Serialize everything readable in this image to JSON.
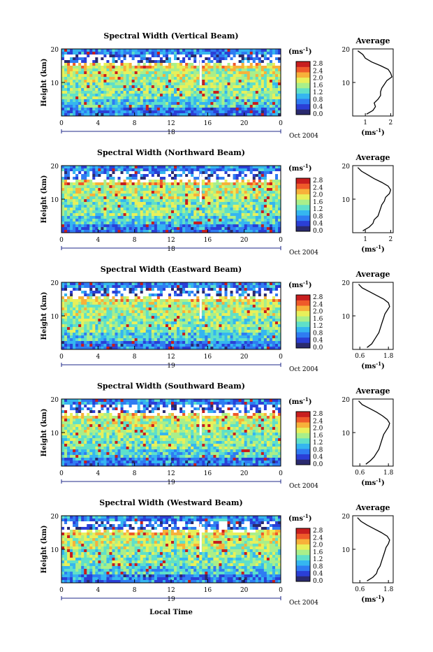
{
  "figure": {
    "x_axis_label": "Local Time",
    "units_label": "(ms",
    "units_exp": "-1",
    "units_close": ")",
    "colors": [
      "#2a2a6e",
      "#2b3fd6",
      "#2f7cf2",
      "#35b6f0",
      "#5fe0c9",
      "#a9ef8a",
      "#e8f05a",
      "#f7b13a",
      "#ef5a2a",
      "#c81e1e"
    ]
  },
  "chart_data": [
    {
      "type": "heatmap",
      "title": "Spectral Width (Vertical Beam)",
      "ylabel": "Height (km)",
      "yticks": [
        "20",
        "10"
      ],
      "xticks": [
        "0",
        "4",
        "8",
        "12",
        "16",
        "20",
        "0"
      ],
      "date_day": "18",
      "date_month": "Oct 2004",
      "colorbar_ticks": [
        "2.8",
        "2.4",
        "2.0",
        "1.6",
        "1.2",
        "0.8",
        "0.4",
        "0.0"
      ],
      "profile": {
        "title": "Average",
        "xlabel": "(ms",
        "xlabel_exp": "-1",
        "xlabel_close": ")",
        "xticks": [
          "1",
          "2"
        ],
        "xlim": [
          0.5,
          2.1
        ],
        "ylim": [
          2,
          20
        ],
        "yticks": [
          "20",
          "10"
        ],
        "height_km": [
          2.5,
          3.5,
          4.5,
          5.5,
          6.5,
          7.5,
          8.5,
          9.5,
          10.5,
          11.5,
          12.5,
          13.5,
          14.5,
          15.5,
          16.5,
          17.5,
          18.5,
          19.5
        ],
        "width_ms": [
          1.05,
          1.3,
          1.4,
          1.35,
          1.5,
          1.6,
          1.6,
          1.65,
          1.75,
          1.85,
          2.05,
          2.0,
          1.9,
          1.6,
          1.25,
          1.0,
          0.9,
          0.7
        ]
      }
    },
    {
      "type": "heatmap",
      "title": "Spectral Width (Northward Beam)",
      "ylabel": "Height (km)",
      "yticks": [
        "20",
        "10"
      ],
      "xticks": [
        "0",
        "4",
        "8",
        "12",
        "16",
        "20",
        "0"
      ],
      "date_day": "18",
      "date_month": "Oct 2004",
      "colorbar_ticks": [
        "2.8",
        "2.4",
        "2.0",
        "1.6",
        "1.2",
        "0.8",
        "0.4",
        "0.0"
      ],
      "profile": {
        "title": "Average",
        "xlabel": "(ms",
        "xlabel_exp": "-1",
        "xlabel_close": ")",
        "xticks": [
          "1",
          "2"
        ],
        "xlim": [
          0.5,
          2.1
        ],
        "ylim": [
          2,
          20
        ],
        "yticks": [
          "20",
          "10"
        ],
        "height_km": [
          2.5,
          3.5,
          4.5,
          5.5,
          6.5,
          7.5,
          8.5,
          9.5,
          10.5,
          11.5,
          12.5,
          13.5,
          14.5,
          15.5,
          16.5,
          17.5,
          18.5,
          19.5
        ],
        "width_ms": [
          0.9,
          1.15,
          1.3,
          1.35,
          1.5,
          1.55,
          1.6,
          1.65,
          1.75,
          1.8,
          1.95,
          2.0,
          1.9,
          1.65,
          1.35,
          1.1,
          0.85,
          0.7
        ]
      }
    },
    {
      "type": "heatmap",
      "title": "Spectral Width (Eastward Beam)",
      "ylabel": "Height (km)",
      "yticks": [
        "20",
        "10"
      ],
      "xticks": [
        "0",
        "4",
        "8",
        "12",
        "16",
        "20",
        "0"
      ],
      "date_day": "19",
      "date_month": "Oct 2004",
      "colorbar_ticks": [
        "2.8",
        "2.4",
        "2.0",
        "1.6",
        "1.2",
        "0.8",
        "0.4",
        "0.0"
      ],
      "profile": {
        "title": "Average",
        "xlabel": "(ms",
        "xlabel_exp": "-1",
        "xlabel_close": ")",
        "xticks": [
          "0.6",
          "1.8"
        ],
        "xlim": [
          0.3,
          2.0
        ],
        "ylim": [
          2,
          20
        ],
        "yticks": [
          "20",
          "10"
        ],
        "height_km": [
          2.5,
          3.5,
          4.5,
          5.5,
          6.5,
          7.5,
          8.5,
          9.5,
          10.5,
          11.5,
          12.5,
          13.5,
          14.5,
          15.5,
          16.5,
          17.5,
          18.5,
          19.5
        ],
        "width_ms": [
          0.9,
          1.1,
          1.2,
          1.3,
          1.4,
          1.45,
          1.5,
          1.55,
          1.6,
          1.65,
          1.75,
          1.85,
          1.8,
          1.6,
          1.3,
          1.0,
          0.7,
          0.55
        ]
      }
    },
    {
      "type": "heatmap",
      "title": "Spectral Width (Southward Beam)",
      "ylabel": "Height (km)",
      "yticks": [
        "20",
        "10"
      ],
      "xticks": [
        "0",
        "4",
        "8",
        "12",
        "16",
        "20",
        "0"
      ],
      "date_day": "19",
      "date_month": "Oct 2004",
      "colorbar_ticks": [
        "2.8",
        "2.4",
        "2.0",
        "1.6",
        "1.2",
        "0.8",
        "0.4",
        "0.0"
      ],
      "profile": {
        "title": "Average",
        "xlabel": "(ms",
        "xlabel_exp": "-1",
        "xlabel_close": ")",
        "xticks": [
          "0.6",
          "1.8"
        ],
        "xlim": [
          0.3,
          2.0
        ],
        "ylim": [
          2,
          20
        ],
        "yticks": [
          "20",
          "10"
        ],
        "height_km": [
          2.5,
          3.5,
          4.5,
          5.5,
          6.5,
          7.5,
          8.5,
          9.5,
          10.5,
          11.5,
          12.5,
          13.5,
          14.5,
          15.5,
          16.5,
          17.5,
          18.5,
          19.5
        ],
        "width_ms": [
          0.85,
          1.05,
          1.2,
          1.3,
          1.4,
          1.45,
          1.5,
          1.55,
          1.6,
          1.7,
          1.8,
          1.85,
          1.75,
          1.55,
          1.3,
          1.0,
          0.7,
          0.55
        ]
      }
    },
    {
      "type": "heatmap",
      "title": "Spectral Width (Westward Beam)",
      "ylabel": "Height (km)",
      "yticks": [
        "20",
        "10"
      ],
      "xticks": [
        "0",
        "4",
        "8",
        "12",
        "16",
        "20",
        "0"
      ],
      "date_day": "19",
      "date_month": "Oct 2004",
      "colorbar_ticks": [
        "2.8",
        "2.4",
        "2.0",
        "1.6",
        "1.2",
        "0.8",
        "0.4",
        "0.0"
      ],
      "profile": {
        "title": "Average",
        "xlabel": "(ms",
        "xlabel_exp": "-1",
        "xlabel_close": ")",
        "xticks": [
          "0.6",
          "1.8"
        ],
        "xlim": [
          0.3,
          2.0
        ],
        "ylim": [
          2,
          20
        ],
        "yticks": [
          "20",
          "10"
        ],
        "height_km": [
          2.5,
          3.5,
          4.5,
          5.5,
          6.5,
          7.5,
          8.5,
          9.5,
          10.5,
          11.5,
          12.5,
          13.5,
          14.5,
          15.5,
          16.5,
          17.5,
          18.5,
          19.5
        ],
        "width_ms": [
          0.9,
          1.15,
          1.3,
          1.35,
          1.45,
          1.5,
          1.55,
          1.6,
          1.65,
          1.7,
          1.8,
          1.85,
          1.75,
          1.5,
          1.2,
          0.9,
          0.65,
          0.5
        ]
      }
    }
  ]
}
